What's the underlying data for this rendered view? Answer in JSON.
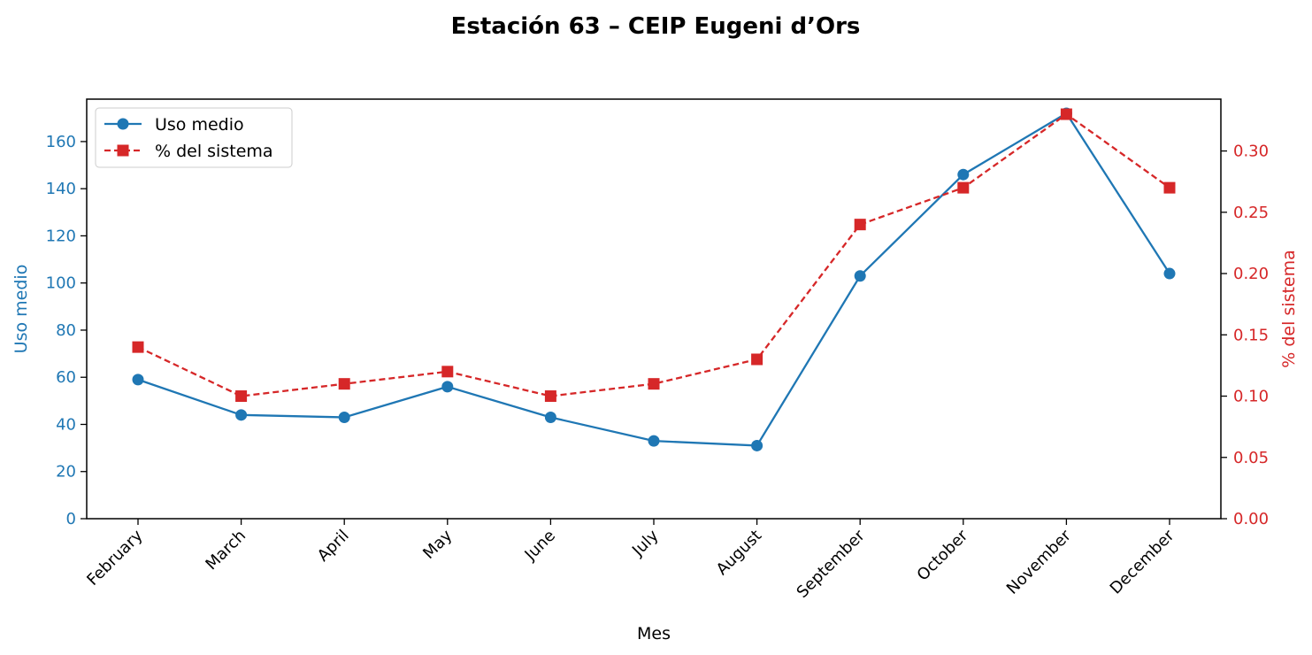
{
  "chart_data": {
    "type": "line",
    "title": "Estación 63 – CEIP Eugeni d’Ors",
    "xlabel": "Mes",
    "ylabel_left": "Uso medio",
    "ylabel_right": "% del sistema",
    "categories": [
      "February",
      "March",
      "April",
      "May",
      "June",
      "July",
      "August",
      "September",
      "October",
      "November",
      "December"
    ],
    "ylim_left": [
      0,
      178
    ],
    "ylim_right": [
      0,
      0.3423
    ],
    "yticks_left": [
      0,
      20,
      40,
      60,
      80,
      100,
      120,
      140,
      160
    ],
    "yticks_right": [
      "0.00",
      "0.05",
      "0.10",
      "0.15",
      "0.20",
      "0.25",
      "0.30"
    ],
    "series": [
      {
        "name": "Uso medio",
        "axis": "left",
        "color": "#1f77b4",
        "linestyle": "solid",
        "marker": "circle",
        "values": [
          59,
          44,
          43,
          56,
          43,
          33,
          31,
          103,
          146,
          172,
          104
        ]
      },
      {
        "name": "% del sistema",
        "axis": "right",
        "color": "#d62728",
        "linestyle": "dashed",
        "marker": "square",
        "values": [
          0.14,
          0.1,
          0.11,
          0.12,
          0.1,
          0.11,
          0.13,
          0.24,
          0.27,
          0.33,
          0.27
        ]
      }
    ],
    "legend_position": "upper-left",
    "grid": false
  }
}
